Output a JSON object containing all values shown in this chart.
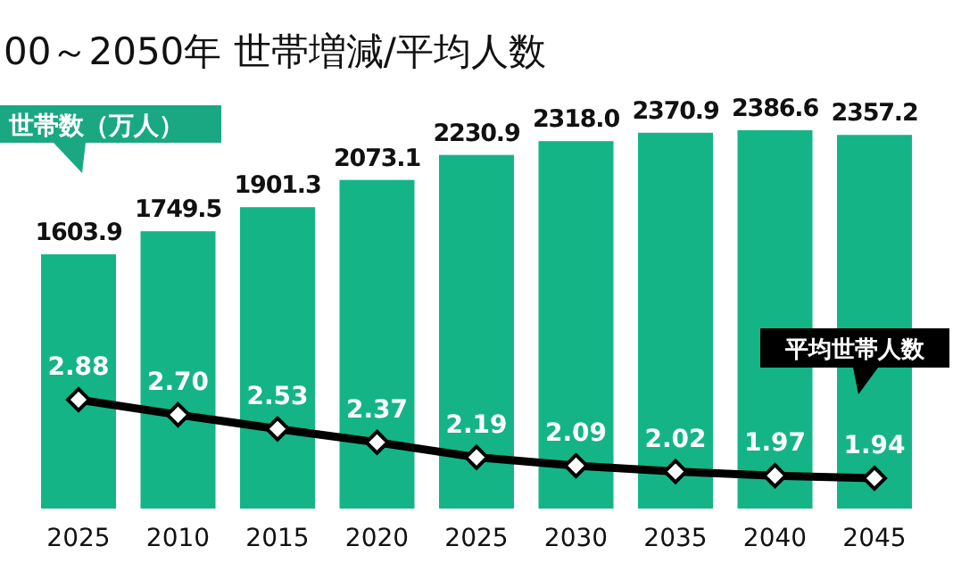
{
  "chart_data": {
    "type": "bar",
    "title": "00～2050年  世帯増減/平均人数",
    "categories": [
      "2025",
      "2010",
      "2015",
      "2020",
      "2025",
      "2030",
      "2035",
      "2040",
      "2045"
    ],
    "series": [
      {
        "name": "世帯数（万人）",
        "color": "#14b487",
        "values": [
          1603.9,
          1749.5,
          1901.3,
          2073.1,
          2230.9,
          2318.0,
          2370.9,
          2386.6,
          2357.2
        ],
        "value_labels": [
          "1603.9",
          "1749.5",
          "1901.3",
          "2073.1",
          "2230.9",
          "2318.0",
          "2370.9",
          "2386.6",
          "2357.2"
        ]
      },
      {
        "name": "平均世帯人数",
        "type": "line",
        "axis": "y2",
        "color": "#000000",
        "values": [
          2.88,
          2.7,
          2.53,
          2.37,
          2.19,
          2.09,
          2.02,
          1.97,
          1.94
        ],
        "value_labels": [
          "2.88",
          "2.70",
          "2.53",
          "2.37",
          "2.19",
          "2.09",
          "2.02",
          "1.97",
          "1.94"
        ]
      }
    ],
    "marker": "diamond"
  }
}
